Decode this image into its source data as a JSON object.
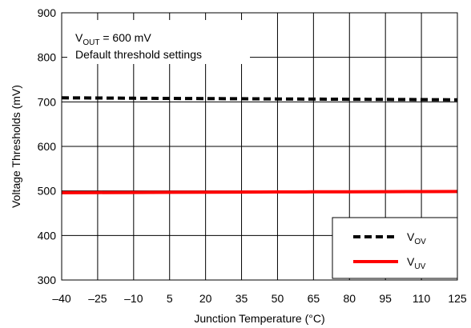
{
  "chart_data": {
    "type": "line",
    "title": "",
    "xlabel": "Junction Temperature (°C)",
    "ylabel": "Voltage Thresholds (mV)",
    "xlim": [
      -40,
      125
    ],
    "ylim": [
      300,
      900
    ],
    "x_ticks": [
      -40,
      -25,
      -10,
      5,
      20,
      35,
      50,
      65,
      80,
      95,
      110,
      125
    ],
    "y_ticks": [
      300,
      400,
      500,
      600,
      700,
      800,
      900
    ],
    "x_tick_labels": [
      "–40",
      "–25",
      "–10",
      "5",
      "20",
      "35",
      "50",
      "65",
      "80",
      "95",
      "110",
      "125"
    ],
    "y_tick_labels": [
      "300",
      "400",
      "500",
      "600",
      "700",
      "800",
      "900"
    ],
    "grid": true,
    "legend_position": "bottom-right",
    "annotation": {
      "line1": {
        "main": "V",
        "sub": "OUT",
        "rest": " = 600 mV"
      },
      "line2": "Default threshold settings"
    },
    "series": [
      {
        "name": "V",
        "name_sub": "OV",
        "color": "#000000",
        "style": "dashed",
        "x": [
          -40,
          -25,
          -10,
          5,
          20,
          35,
          50,
          65,
          80,
          95,
          110,
          125
        ],
        "y": [
          709,
          708.6,
          708.2,
          707.8,
          707.4,
          707,
          706.6,
          706.2,
          705.8,
          705.4,
          705,
          704.6
        ]
      },
      {
        "name": "V",
        "name_sub": "UV",
        "color": "#ff0000",
        "style": "solid",
        "x": [
          -40,
          -25,
          -10,
          5,
          20,
          35,
          50,
          65,
          80,
          95,
          110,
          125
        ],
        "y": [
          496,
          496.3,
          496.6,
          496.9,
          497.2,
          497.5,
          497.7,
          497.9,
          498.1,
          498.3,
          498.5,
          498.7
        ]
      }
    ]
  }
}
